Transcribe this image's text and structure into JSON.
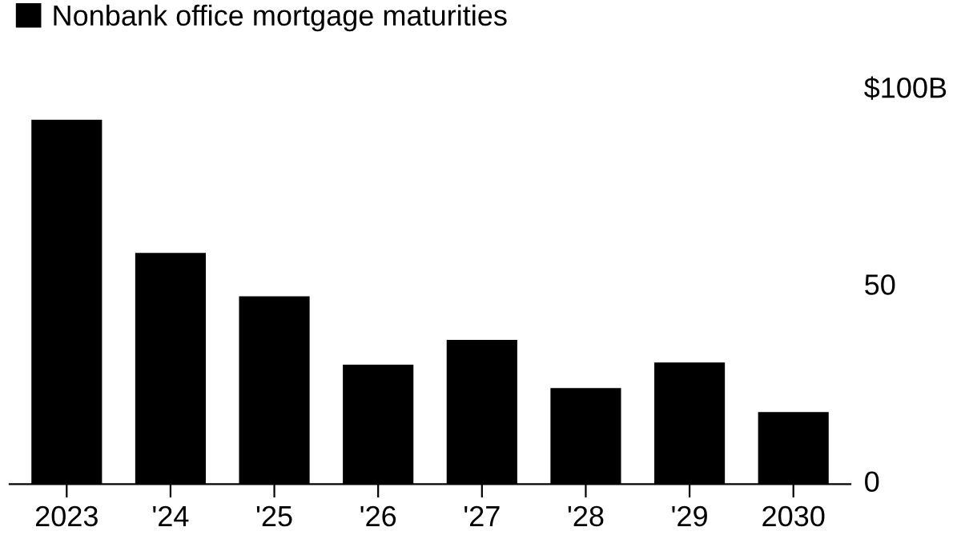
{
  "chart_data": {
    "type": "bar",
    "categories": [
      "2023",
      "'24",
      "'25",
      "'26",
      "'27",
      "'28",
      "'29",
      "2030"
    ],
    "series": [
      {
        "name": "Nonbank office mortgage maturities",
        "color": "#000000",
        "values": [
          92.5,
          58.7,
          47.7,
          30.3,
          36.6,
          24.4,
          30.9,
          18.3
        ]
      }
    ],
    "ylim": [
      0,
      100
    ],
    "yticks": [
      0,
      50,
      {
        "value": 100,
        "label": "$100B"
      }
    ],
    "grid": false,
    "legend": "top left"
  }
}
